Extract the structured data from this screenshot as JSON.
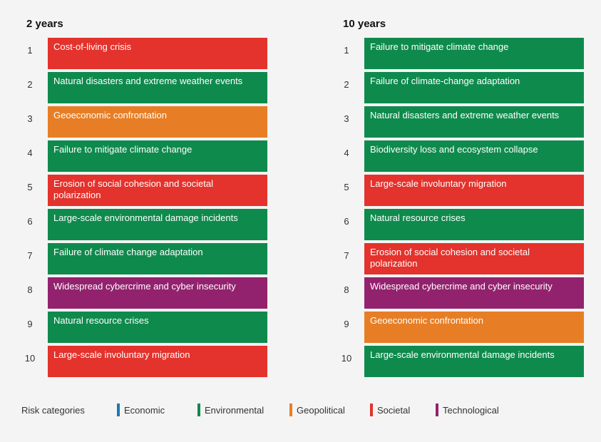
{
  "chart_data": {
    "type": "table",
    "columns": [
      {
        "title": "2 years",
        "items": [
          {
            "rank": "1",
            "label": "Cost-of-living crisis",
            "category": "Societal"
          },
          {
            "rank": "2",
            "label": "Natural disasters and extreme weather events",
            "category": "Environmental"
          },
          {
            "rank": "3",
            "label": "Geoeconomic confrontation",
            "category": "Geopolitical"
          },
          {
            "rank": "4",
            "label": "Failure to mitigate climate change",
            "category": "Environmental"
          },
          {
            "rank": "5",
            "label": "Erosion of social cohesion and societal polarization",
            "category": "Societal"
          },
          {
            "rank": "6",
            "label": "Large-scale environmental damage incidents",
            "category": "Environmental"
          },
          {
            "rank": "7",
            "label": "Failure of climate change adaptation",
            "category": "Environmental"
          },
          {
            "rank": "8",
            "label": "Widespread cybercrime and cyber insecurity",
            "category": "Technological"
          },
          {
            "rank": "9",
            "label": "Natural resource crises",
            "category": "Environmental"
          },
          {
            "rank": "10",
            "label": "Large-scale involuntary migration",
            "category": "Societal"
          }
        ]
      },
      {
        "title": "10 years",
        "items": [
          {
            "rank": "1",
            "label": "Failure to mitigate climate change",
            "category": "Environmental"
          },
          {
            "rank": "2",
            "label": "Failure of climate-change adaptation",
            "category": "Environmental"
          },
          {
            "rank": "3",
            "label": "Natural disasters and extreme weather events",
            "category": "Environmental"
          },
          {
            "rank": "4",
            "label": "Biodiversity loss and ecosystem collapse",
            "category": "Environmental"
          },
          {
            "rank": "5",
            "label": "Large-scale involuntary migration",
            "category": "Societal"
          },
          {
            "rank": "6",
            "label": "Natural resource crises",
            "category": "Environmental"
          },
          {
            "rank": "7",
            "label": "Erosion of social cohesion and societal polarization",
            "category": "Societal"
          },
          {
            "rank": "8",
            "label": "Widespread cybercrime and cyber insecurity",
            "category": "Technological"
          },
          {
            "rank": "9",
            "label": "Geoeconomic confrontation",
            "category": "Geopolitical"
          },
          {
            "rank": "10",
            "label": "Large-scale environmental damage incidents",
            "category": "Environmental"
          }
        ]
      }
    ],
    "legend": {
      "title": "Risk categories",
      "placement": "bottom",
      "items": [
        {
          "name": "Economic",
          "color": "#1a79b5"
        },
        {
          "name": "Environmental",
          "color": "#0f8a4d"
        },
        {
          "name": "Geopolitical",
          "color": "#e77e25"
        },
        {
          "name": "Societal",
          "color": "#e4322c"
        },
        {
          "name": "Technological",
          "color": "#93226e"
        }
      ]
    }
  }
}
